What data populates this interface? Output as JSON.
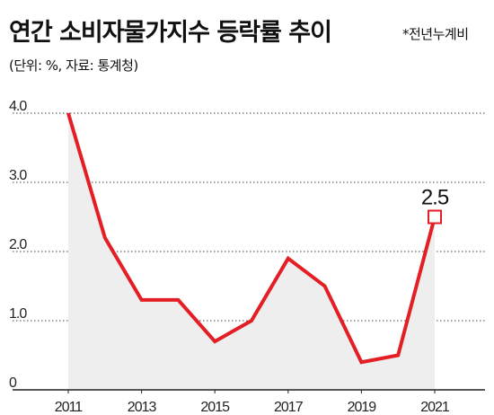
{
  "header": {
    "title": "연간 소비자물가지수 등락률 추이",
    "note": "*전년누계비",
    "subtitle": "(단위: %, 자료: 통계청)"
  },
  "colors": {
    "line": "#e31e24",
    "area": "#eeeeee",
    "grid": "#444444"
  },
  "chart_data": {
    "type": "line",
    "title": "연간 소비자물가지수 등락률 추이",
    "xlabel": "",
    "ylabel": "",
    "x": [
      2011,
      2012,
      2013,
      2014,
      2015,
      2016,
      2017,
      2018,
      2019,
      2020,
      2021
    ],
    "series": [
      {
        "values": [
          4.0,
          2.2,
          1.3,
          1.3,
          0.7,
          1.0,
          1.9,
          1.5,
          0.4,
          0.5,
          2.5
        ]
      }
    ],
    "ylim": [
      0,
      4.0
    ],
    "y_ticks": [
      "0",
      "1.0",
      "2.0",
      "3.0",
      "4.0"
    ],
    "y_tick_values": [
      0,
      1.0,
      2.0,
      3.0,
      4.0
    ],
    "x_ticks": [
      "2011",
      "2013",
      "2015",
      "2017",
      "2019",
      "2021"
    ],
    "x_tick_values": [
      2011,
      2013,
      2015,
      2017,
      2019,
      2021
    ],
    "highlight": {
      "x": 2021,
      "label": "2.5"
    },
    "grid": true,
    "area_fill": true
  }
}
